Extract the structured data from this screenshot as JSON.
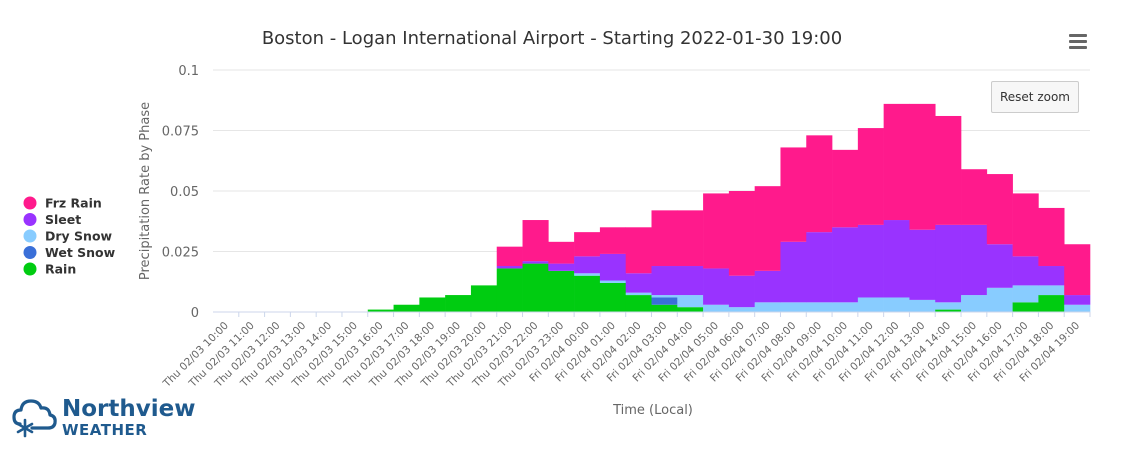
{
  "chart_data": {
    "type": "bar",
    "stacked": true,
    "title": "Boston - Logan International Airport - Starting 2022-01-30 19:00",
    "xlabel": "Time (Local)",
    "ylabel": "Precipitation Rate by Phase",
    "ylim": [
      0,
      0.1
    ],
    "yticks": [
      "0",
      "0.025",
      "0.05",
      "0.075",
      "0.1"
    ],
    "ytick_values": [
      0,
      0.025,
      0.05,
      0.075,
      0.1
    ],
    "grid": true,
    "legend_position": "left",
    "categories": [
      "Thu 02/03 10:00",
      "Thu 02/03 11:00",
      "Thu 02/03 12:00",
      "Thu 02/03 13:00",
      "Thu 02/03 14:00",
      "Thu 02/03 15:00",
      "Thu 02/03 16:00",
      "Thu 02/03 17:00",
      "Thu 02/03 18:00",
      "Thu 02/03 19:00",
      "Thu 02/03 20:00",
      "Thu 02/03 21:00",
      "Thu 02/03 22:00",
      "Thu 02/03 23:00",
      "Fri 02/04 00:00",
      "Fri 02/04 01:00",
      "Fri 02/04 02:00",
      "Fri 02/04 03:00",
      "Fri 02/04 04:00",
      "Fri 02/04 05:00",
      "Fri 02/04 06:00",
      "Fri 02/04 07:00",
      "Fri 02/04 08:00",
      "Fri 02/04 09:00",
      "Fri 02/04 10:00",
      "Fri 02/04 11:00",
      "Fri 02/04 12:00",
      "Fri 02/04 13:00",
      "Fri 02/04 14:00",
      "Fri 02/04 15:00",
      "Fri 02/04 16:00",
      "Fri 02/04 17:00",
      "Fri 02/04 18:00",
      "Fri 02/04 19:00"
    ],
    "series": [
      {
        "name": "Rain",
        "color": "#00cc11",
        "values": [
          0,
          0,
          0,
          0,
          0,
          0,
          0.001,
          0.003,
          0.006,
          0.007,
          0.011,
          0.018,
          0.02,
          0.017,
          0.015,
          0.012,
          0.007,
          0.003,
          0.002,
          0,
          0,
          0,
          0,
          0,
          0,
          0,
          0,
          0,
          0.001,
          0,
          0,
          0.004,
          0.007,
          0
        ]
      },
      {
        "name": "Wet Snow",
        "color": "#3a6fd8",
        "values": [
          0,
          0,
          0,
          0,
          0,
          0,
          0,
          0,
          0,
          0,
          0,
          0,
          0,
          0,
          0,
          0,
          0,
          0.003,
          0,
          0,
          0,
          0,
          0,
          0,
          0,
          0,
          0,
          0,
          0,
          0,
          0,
          0,
          0,
          0
        ]
      },
      {
        "name": "Dry Snow",
        "color": "#88ccff",
        "values": [
          0,
          0,
          0,
          0,
          0,
          0,
          0,
          0,
          0,
          0,
          0,
          0,
          0,
          0,
          0.001,
          0.001,
          0.001,
          0.001,
          0.005,
          0.003,
          0.002,
          0.004,
          0.004,
          0.004,
          0.004,
          0.006,
          0.006,
          0.005,
          0.003,
          0.007,
          0.01,
          0.007,
          0.004,
          0.003
        ]
      },
      {
        "name": "Sleet",
        "color": "#9933ff",
        "values": [
          0,
          0,
          0,
          0,
          0,
          0,
          0,
          0,
          0,
          0,
          0,
          0.001,
          0.001,
          0.003,
          0.007,
          0.011,
          0.008,
          0.012,
          0.012,
          0.015,
          0.013,
          0.013,
          0.025,
          0.029,
          0.031,
          0.03,
          0.032,
          0.029,
          0.032,
          0.029,
          0.018,
          0.012,
          0.008,
          0.004
        ]
      },
      {
        "name": "Frz Rain",
        "color": "#ff1a8c",
        "values": [
          0,
          0,
          0,
          0,
          0,
          0,
          0,
          0,
          0,
          0,
          0,
          0.008,
          0.017,
          0.009,
          0.01,
          0.011,
          0.019,
          0.023,
          0.023,
          0.031,
          0.035,
          0.035,
          0.039,
          0.04,
          0.032,
          0.04,
          0.048,
          0.052,
          0.045,
          0.023,
          0.029,
          0.026,
          0.024,
          0.021
        ]
      }
    ],
    "legend_order": [
      "Frz Rain",
      "Sleet",
      "Dry Snow",
      "Wet Snow",
      "Rain"
    ]
  },
  "ui": {
    "reset_zoom_label": "Reset zoom"
  },
  "logo": {
    "name": "Northview",
    "sub": "WEATHER",
    "brand_color": "#1f5a8e"
  }
}
